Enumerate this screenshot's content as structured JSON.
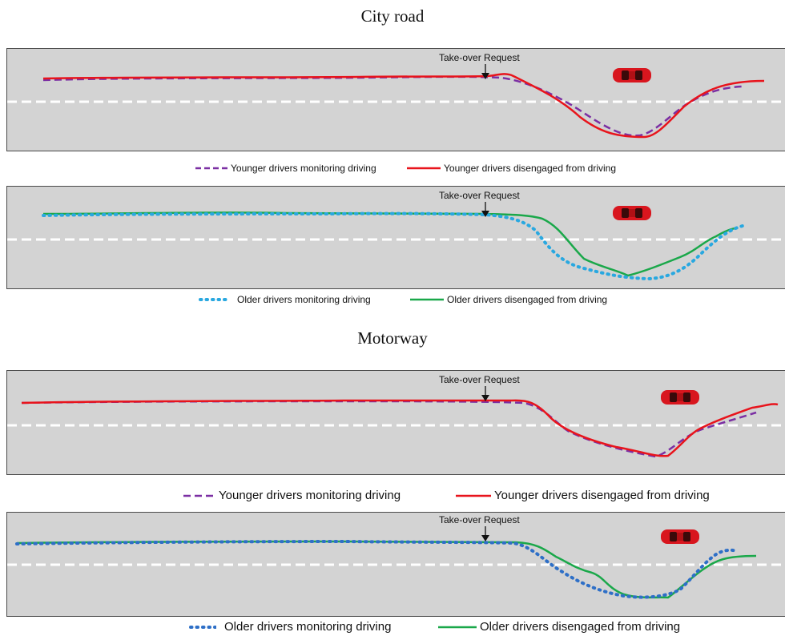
{
  "sections": [
    {
      "title": "City road"
    },
    {
      "title": "Motorway"
    }
  ],
  "panels": [
    {
      "take_over_label": "Take-over Request"
    },
    {
      "take_over_label": "Take-over Request"
    },
    {
      "take_over_label": "Take-over Request"
    },
    {
      "take_over_label": "Take-over Request"
    }
  ],
  "legends": [
    {
      "items": [
        "Younger drivers monitoring driving",
        "Younger drivers disengaged from driving"
      ]
    },
    {
      "items": [
        "Older drivers monitoring driving",
        "Older drivers disengaged from driving"
      ]
    },
    {
      "items": [
        "Younger drivers monitoring driving",
        "Younger drivers disengaged from driving"
      ]
    },
    {
      "items": [
        "Older drivers monitoring driving",
        "Older drivers disengaged from driving"
      ]
    }
  ],
  "colors": {
    "younger_monitoring": "#7b2fa3",
    "younger_disengaged": "#e8141c",
    "older_monitoring_city": "#29a8e0",
    "older_monitoring_motorway": "#2e6fc7",
    "older_disengaged": "#1aa84a",
    "road": "#d3d3d3",
    "lane_marking": "#ffffff",
    "car": "#d8161e"
  },
  "icons": [
    "car-icon",
    "arrow-down-icon"
  ]
}
